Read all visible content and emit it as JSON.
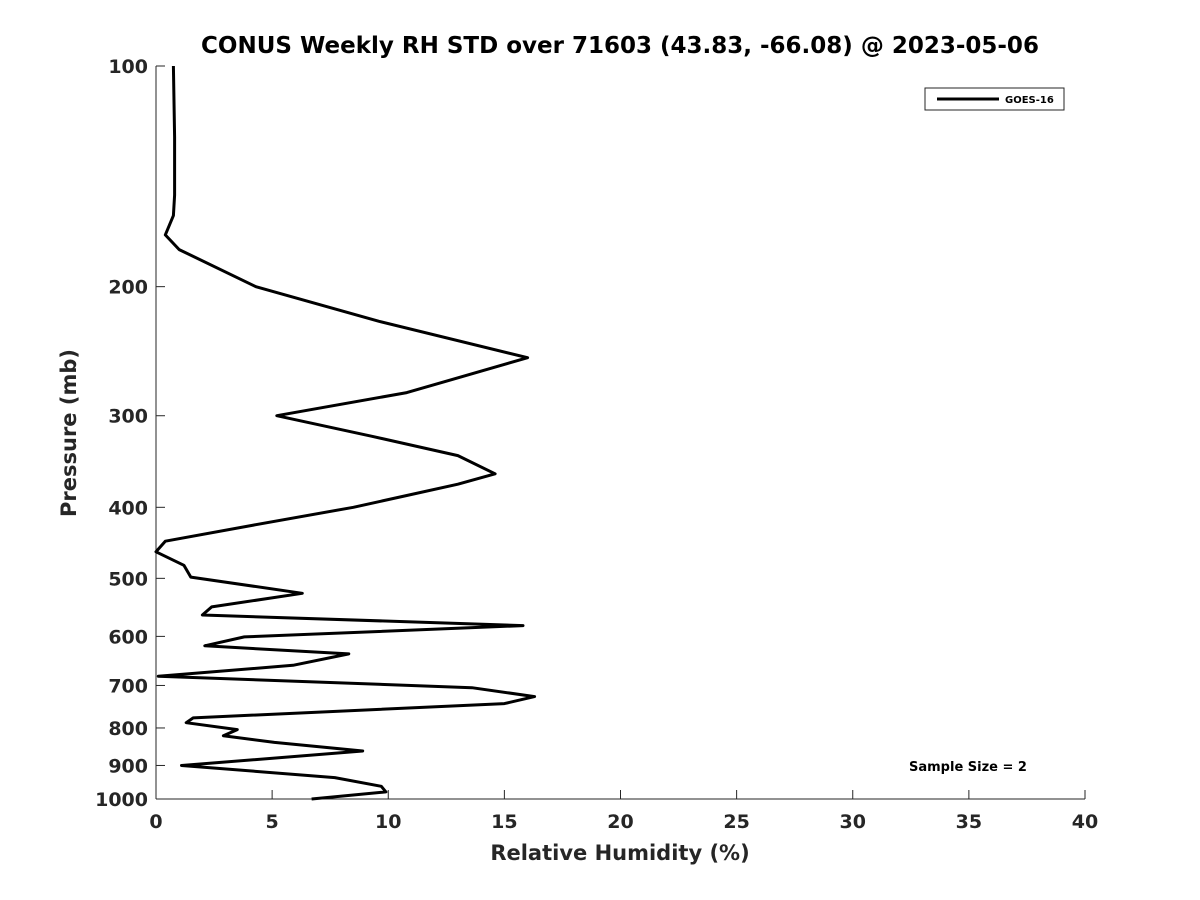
{
  "chart_data": {
    "type": "line",
    "title": "CONUS Weekly RH STD over 71603 (43.83, -66.08) @ 2023-05-06",
    "xlabel": "Relative Humidity (%)",
    "ylabel": "Pressure (mb)",
    "xlim": [
      0,
      40
    ],
    "ylim": [
      1000,
      100
    ],
    "y_scale": "log",
    "y_reversed": true,
    "x_ticks": [
      "0",
      "5",
      "10",
      "15",
      "20",
      "25",
      "30",
      "35",
      "40"
    ],
    "y_ticks": [
      "100",
      "200",
      "300",
      "400",
      "500",
      "600",
      "700",
      "800",
      "900",
      "1000"
    ],
    "grid": false,
    "legend_position": "top-right",
    "annotation": "Sample Size = 2",
    "series": [
      {
        "name": "GOES-16",
        "color": "#000000",
        "x": [
          0.75,
          0.8,
          0.8,
          0.75,
          0.4,
          1.0,
          4.3,
          9.6,
          16.0,
          10.8,
          5.2,
          9.3,
          13.0,
          14.6,
          13.0,
          10.7,
          8.5,
          4.2,
          0.4,
          0.0,
          1.2,
          1.5,
          6.3,
          2.4,
          2.0,
          15.8,
          3.8,
          2.1,
          8.3,
          5.9,
          0.1,
          13.6,
          16.3,
          15.0,
          1.6,
          1.3,
          3.5,
          2.9,
          5.1,
          8.9,
          1.1,
          7.7,
          9.7,
          9.9,
          6.7
        ],
        "y": [
          100,
          125,
          150,
          160,
          170,
          178,
          200,
          223,
          250,
          279,
          300,
          320,
          340,
          360,
          372,
          386,
          400,
          423,
          445,
          460,
          480,
          498,
          524,
          547,
          561,
          580,
          601,
          618,
          634,
          657,
          680,
          705,
          725,
          741,
          775,
          787,
          804,
          820,
          837,
          860,
          900,
          935,
          961,
          978,
          1000
        ]
      }
    ]
  }
}
